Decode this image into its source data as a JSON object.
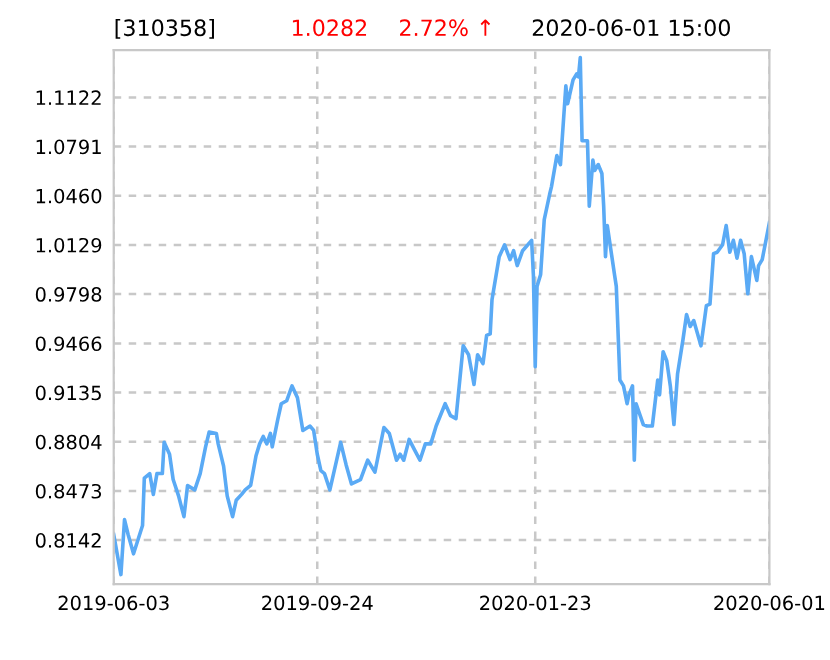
{
  "chart_data": {
    "type": "line",
    "title": "[310358]",
    "annotations": [
      "1.0282",
      "2.72% ↑",
      "2020-06-01 15:00"
    ],
    "x": [
      "2019-06-03",
      "2019-06-07",
      "2019-06-09",
      "2019-06-11",
      "2019-06-14",
      "2019-06-19",
      "2019-06-20",
      "2019-06-23",
      "2019-06-25",
      "2019-06-27",
      "2019-06-30",
      "2019-07-01",
      "2019-07-04",
      "2019-07-06",
      "2019-07-09",
      "2019-07-12",
      "2019-07-14",
      "2019-07-18",
      "2019-07-21",
      "2019-07-24",
      "2019-07-26",
      "2019-07-30",
      "2019-07-31",
      "2019-08-03",
      "2019-08-05",
      "2019-08-08",
      "2019-08-10",
      "2019-08-13",
      "2019-08-15",
      "2019-08-18",
      "2019-08-21",
      "2019-08-23",
      "2019-08-25",
      "2019-08-27",
      "2019-08-29",
      "2019-08-30",
      "2019-09-02",
      "2019-09-04",
      "2019-09-07",
      "2019-09-10",
      "2019-09-13",
      "2019-09-16",
      "2019-09-20",
      "2019-09-22",
      "2019-09-24",
      "2019-09-26",
      "2019-09-28",
      "2019-10-01",
      "2019-10-07",
      "2019-10-10",
      "2019-10-13",
      "2019-10-18",
      "2019-10-22",
      "2019-10-26",
      "2019-10-31",
      "2019-11-03",
      "2019-11-07",
      "2019-11-09",
      "2019-11-11",
      "2019-11-14",
      "2019-11-17",
      "2019-11-20",
      "2019-11-23",
      "2019-11-26",
      "2019-11-29",
      "2019-12-04",
      "2019-12-07",
      "2019-12-10",
      "2019-12-14",
      "2019-12-17",
      "2019-12-20",
      "2019-12-22",
      "2019-12-25",
      "2019-12-27",
      "2019-12-29",
      "2019-12-30",
      "2020-01-03",
      "2020-01-06",
      "2020-01-09",
      "2020-01-11",
      "2020-01-13",
      "2020-01-16",
      "2020-01-21",
      "2020-01-22",
      "2020-01-23",
      "2020-01-24",
      "2020-01-26",
      "2020-01-28",
      "2020-01-31",
      "2020-02-01",
      "2020-02-04",
      "2020-02-06",
      "2020-02-09",
      "2020-02-10",
      "2020-02-13",
      "2020-02-15",
      "2020-02-16",
      "2020-02-17",
      "2020-02-18",
      "2020-02-21",
      "2020-02-22",
      "2020-02-24",
      "2020-02-25",
      "2020-02-27",
      "2020-02-29",
      "2020-03-01",
      "2020-03-02",
      "2020-03-03",
      "2020-03-07",
      "2020-03-08",
      "2020-03-10",
      "2020-03-12",
      "2020-03-14",
      "2020-03-15",
      "2020-03-17",
      "2020-03-18",
      "2020-03-19",
      "2020-03-23",
      "2020-03-25",
      "2020-03-28",
      "2020-03-31",
      "2020-04-01",
      "2020-04-03",
      "2020-04-05",
      "2020-04-07",
      "2020-04-09",
      "2020-04-11",
      "2020-04-14",
      "2020-04-16",
      "2020-04-18",
      "2020-04-20",
      "2020-04-24",
      "2020-04-27",
      "2020-04-29",
      "2020-05-01",
      "2020-05-03",
      "2020-05-06",
      "2020-05-08",
      "2020-05-10",
      "2020-05-12",
      "2020-05-14",
      "2020-05-16",
      "2020-05-18",
      "2020-05-20",
      "2020-05-22",
      "2020-05-25",
      "2020-05-26",
      "2020-05-28",
      "2020-06-01"
    ],
    "series": [
      {
        "color": "#5aaaf5",
        "values": [
          0.818,
          0.791,
          0.828,
          0.818,
          0.805,
          0.824,
          0.856,
          0.859,
          0.845,
          0.859,
          0.859,
          0.88,
          0.872,
          0.855,
          0.844,
          0.83,
          0.851,
          0.848,
          0.859,
          0.877,
          0.887,
          0.886,
          0.879,
          0.864,
          0.844,
          0.83,
          0.841,
          0.845,
          0.848,
          0.851,
          0.871,
          0.879,
          0.884,
          0.879,
          0.886,
          0.877,
          0.895,
          0.906,
          0.908,
          0.918,
          0.91,
          0.888,
          0.891,
          0.888,
          0.872,
          0.861,
          0.859,
          0.848,
          0.88,
          0.865,
          0.852,
          0.855,
          0.868,
          0.86,
          0.89,
          0.886,
          0.868,
          0.872,
          0.868,
          0.882,
          0.875,
          0.868,
          0.879,
          0.879,
          0.891,
          0.906,
          0.898,
          0.896,
          0.945,
          0.939,
          0.919,
          0.939,
          0.933,
          0.952,
          0.953,
          0.976,
          1.005,
          1.013,
          1.003,
          1.009,
          0.999,
          1.009,
          1.016,
          0.992,
          0.931,
          0.985,
          0.993,
          1.03,
          1.047,
          1.052,
          1.073,
          1.067,
          1.12,
          1.108,
          1.124,
          1.128,
          1.126,
          1.139,
          1.083,
          1.083,
          1.039,
          1.07,
          1.063,
          1.067,
          1.061,
          1.039,
          1.005,
          1.026,
          0.993,
          0.985,
          0.922,
          0.918,
          0.906,
          0.912,
          0.918,
          0.868,
          0.906,
          0.892,
          0.891,
          0.891,
          0.922,
          0.912,
          0.941,
          0.935,
          0.918,
          0.892,
          0.926,
          0.949,
          0.966,
          0.958,
          0.962,
          0.945,
          0.972,
          0.973,
          1.007,
          1.008,
          1.013,
          1.026,
          1.008,
          1.016,
          1.004,
          1.016,
          1.007,
          0.98,
          1.005,
          0.989,
          0.999,
          1.003,
          1.028
        ]
      }
    ],
    "xlim": [
      "2019-06-03",
      "2020-06-01"
    ],
    "xticks": [
      {
        "value": "2019-06-03",
        "label": "2019-06-03"
      },
      {
        "value": "2019-09-24",
        "label": "2019-09-24"
      },
      {
        "value": "2020-01-23",
        "label": "2020-01-23"
      },
      {
        "value": "2020-06-01",
        "label": "2020-06-01"
      }
    ],
    "ylim": [
      0.7846,
      1.144
    ],
    "yticks": [
      0.8142,
      0.8473,
      0.8804,
      0.9135,
      0.9466,
      0.9798,
      1.0129,
      {
        "value": 1.046,
        "label": "1.0460"
      },
      1.0791,
      1.1122
    ],
    "grid": true,
    "line_style": "solid",
    "marker": "none",
    "legend": false
  }
}
